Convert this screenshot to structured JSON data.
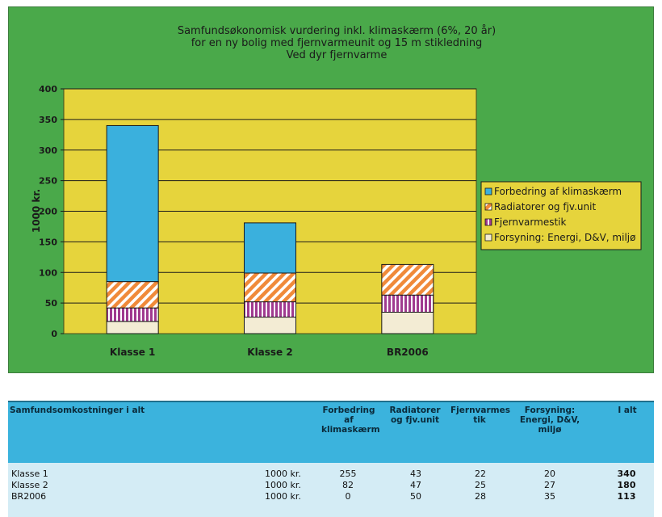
{
  "chart_data": {
    "type": "bar",
    "stacked": true,
    "title": [
      "Samfundsøkonomisk vurdering inkl. klimaskærm (6%, 20 år)",
      "for en ny bolig med fjernvarmeunit og 15 m stikledning",
      "Ved dyr fjernvarme"
    ],
    "ylabel": "1000 kr.",
    "ylim": [
      0,
      400
    ],
    "yticks": [
      0,
      50,
      100,
      150,
      200,
      250,
      300,
      350,
      400
    ],
    "categories": [
      "Klasse 1",
      "Klasse 2",
      "BR2006"
    ],
    "series": [
      {
        "name": "Forsyning:  Energi, D&V, miljø",
        "values": [
          20,
          27,
          35
        ],
        "color": "#f3ecd4",
        "pattern": "solid"
      },
      {
        "name": "Fjernvarmestik",
        "values": [
          22,
          25,
          28
        ],
        "color": "#a03a8f",
        "pattern": "vertical-stripes"
      },
      {
        "name": "Radiatorer og fjv.unit",
        "values": [
          43,
          47,
          50
        ],
        "color": "#f08a3a",
        "pattern": "diagonal-stripes"
      },
      {
        "name": "Forbedring af klimaskærm",
        "values": [
          255,
          82,
          0
        ],
        "color": "#3ab0dd",
        "pattern": "solid"
      }
    ],
    "legend_order": [
      "Forbedring af klimaskærm",
      "Radiatorer og fjv.unit",
      "Fjernvarmestik",
      "Forsyning:  Energi, D&V, miljø"
    ],
    "legend_position": "right",
    "grid": true,
    "plot_background": "#e6d43c",
    "panel_background": "#4aa94a"
  },
  "table": {
    "title": "Samfundsomkostninger i alt",
    "headers": [
      "Forbedring\naf\nklimaskærm",
      "Radiatorer\nog fjv.unit",
      "Fjernvarmes\ntik",
      "Forsyning:\nEnergi, D&V,\nmiljø",
      "I alt"
    ],
    "rows": [
      {
        "label": "Klasse 1",
        "unit": "1000 kr.",
        "values": [
          "255",
          "43",
          "22",
          "20"
        ],
        "total": "340"
      },
      {
        "label": "Klasse 2",
        "unit": "1000 kr.",
        "values": [
          "82",
          "47",
          "25",
          "27"
        ],
        "total": "180"
      },
      {
        "label": "BR2006",
        "unit": "1000 kr.",
        "values": [
          "0",
          "50",
          "28",
          "35"
        ],
        "total": "113"
      }
    ]
  }
}
